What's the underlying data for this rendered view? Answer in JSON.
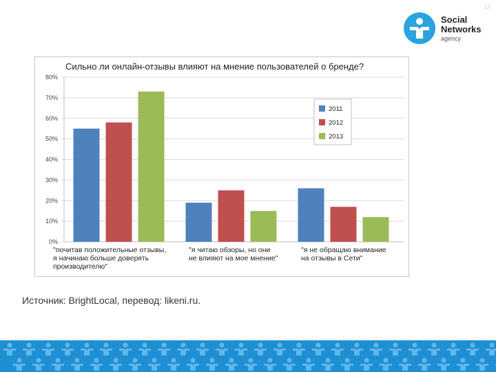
{
  "slide_number": "17",
  "logo": {
    "line1": "Social",
    "line2": "Networks",
    "line3": "agency"
  },
  "chart_data": {
    "type": "bar",
    "title": "Сильно ли онлайн-отзывы влияют на мнение пользователей о бренде?",
    "categories": [
      [
        "\"почитав положительные отзывы,",
        "я начинаю больше доверять",
        "производителю\""
      ],
      [
        "\"я читаю обзоры, но они",
        "не влияют на мое мнение\""
      ],
      [
        "\"я не обращаю внимание",
        "на отзывы в Сети\""
      ]
    ],
    "series": [
      {
        "name": "2011",
        "color": "#4f81bd",
        "values": [
          55,
          19,
          26
        ]
      },
      {
        "name": "2012",
        "color": "#c0504d",
        "values": [
          58,
          25,
          17
        ]
      },
      {
        "name": "2013",
        "color": "#9bbb59",
        "values": [
          73,
          15,
          12
        ]
      }
    ],
    "ylim": [
      0,
      80
    ],
    "yticks": [
      "0%",
      "10%",
      "20%",
      "30%",
      "40%",
      "50%",
      "60%",
      "70%",
      "80%"
    ],
    "grid": true,
    "legend_position": "right"
  },
  "source_text": "Источник: BrightLocal, перевод: likeni.ru.",
  "colors": {
    "accent": "#1f8fd3",
    "logo": "#2aa3e0"
  }
}
